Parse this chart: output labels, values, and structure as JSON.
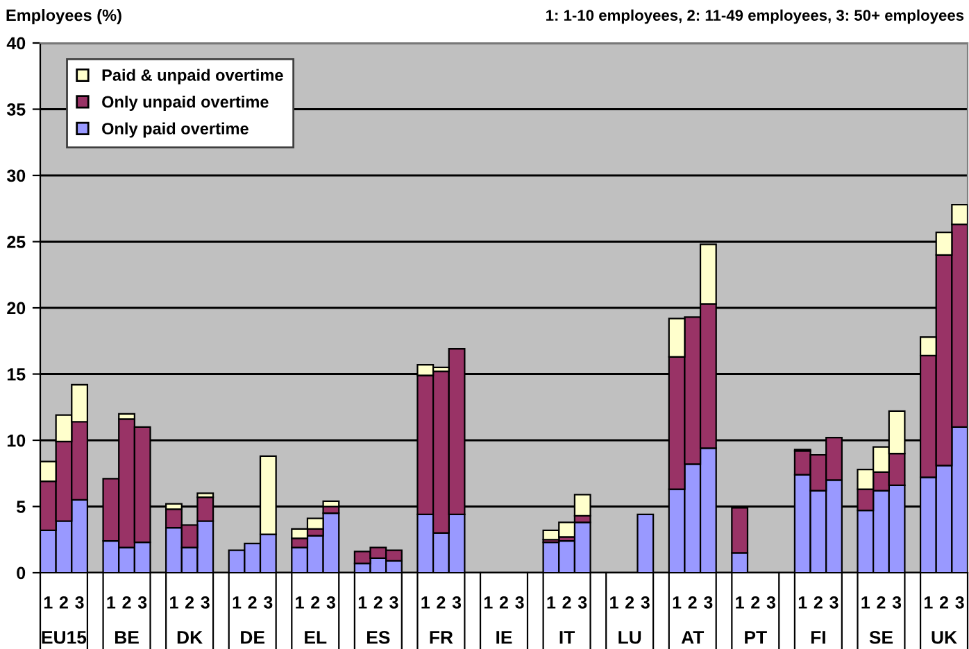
{
  "chart_data": {
    "type": "bar",
    "stacked": true,
    "ylabel": "Employees (%)",
    "categories": [
      "1",
      "2",
      "3",
      null,
      "1",
      "2",
      "3",
      null,
      "1",
      "2",
      "3",
      null,
      "1",
      "2",
      "3",
      null,
      "1",
      "2",
      "3",
      null,
      "1",
      "2",
      "3",
      null,
      "1",
      "2",
      "3",
      null,
      "1",
      "2",
      "3",
      null,
      "1",
      "2",
      "3",
      null,
      "1",
      "2",
      "3",
      null,
      "1",
      "2",
      "3",
      null,
      "1",
      "2",
      "3",
      null,
      "1",
      "2",
      "3",
      null,
      "1",
      "2",
      "3",
      null,
      "1",
      "2",
      "3"
    ],
    "series": [
      {
        "name": "Only paid overtime",
        "color": "#9999ff",
        "values": [
          3.2,
          3.9,
          5.5,
          null,
          2.4,
          1.9,
          2.3,
          null,
          3.4,
          1.9,
          3.9,
          null,
          1.7,
          2.2,
          2.9,
          null,
          1.9,
          2.8,
          4.5,
          null,
          0.7,
          1.1,
          0.9,
          null,
          4.4,
          3.0,
          4.4,
          null,
          null,
          null,
          null,
          null,
          2.3,
          2.4,
          3.8,
          null,
          null,
          null,
          4.4,
          null,
          6.3,
          8.2,
          9.4,
          null,
          1.5,
          null,
          null,
          null,
          7.4,
          6.2,
          7.0,
          null,
          4.7,
          6.2,
          6.6,
          null,
          7.2,
          8.1,
          11.0
        ]
      },
      {
        "name": "Only unpaid overtime",
        "color": "#993366",
        "values": [
          3.7,
          6.0,
          5.9,
          null,
          4.7,
          9.7,
          8.7,
          null,
          1.4,
          1.7,
          1.8,
          null,
          null,
          null,
          null,
          null,
          0.7,
          0.5,
          0.5,
          null,
          0.9,
          0.8,
          0.8,
          null,
          10.5,
          12.2,
          12.5,
          null,
          null,
          null,
          null,
          null,
          0.2,
          0.3,
          0.5,
          null,
          null,
          null,
          null,
          null,
          10.0,
          11.1,
          10.9,
          null,
          3.4,
          null,
          null,
          null,
          1.8,
          2.7,
          3.2,
          null,
          1.6,
          1.4,
          2.4,
          null,
          9.2,
          15.9,
          15.3
        ]
      },
      {
        "name": "Paid & unpaid overtime",
        "color": "#ffffcc",
        "values": [
          1.5,
          2.0,
          2.8,
          null,
          null,
          0.4,
          null,
          null,
          0.4,
          null,
          0.3,
          null,
          null,
          null,
          5.9,
          null,
          0.7,
          0.8,
          0.4,
          null,
          null,
          null,
          null,
          null,
          0.8,
          0.3,
          null,
          null,
          null,
          null,
          null,
          null,
          0.7,
          1.1,
          1.6,
          null,
          null,
          null,
          null,
          null,
          2.9,
          null,
          4.5,
          null,
          null,
          null,
          null,
          null,
          0.1,
          null,
          null,
          null,
          1.5,
          1.9,
          3.2,
          null,
          1.4,
          1.7,
          1.5
        ]
      }
    ],
    "ylim": [
      0,
      40
    ],
    "yticks": [
      0,
      5,
      10,
      15,
      20,
      25,
      30,
      35,
      40
    ],
    "grid": "y",
    "legend": "top left",
    "annotations": [
      "1: 1-10 employees, 2: 11-49 employees, 3: 50+ employees",
      "EU15",
      "BE",
      "DK",
      "DE",
      "EL",
      "ES",
      "FR",
      "IE",
      "IT",
      "LU",
      "AT",
      "PT",
      "FI",
      "SE",
      "UK"
    ]
  }
}
